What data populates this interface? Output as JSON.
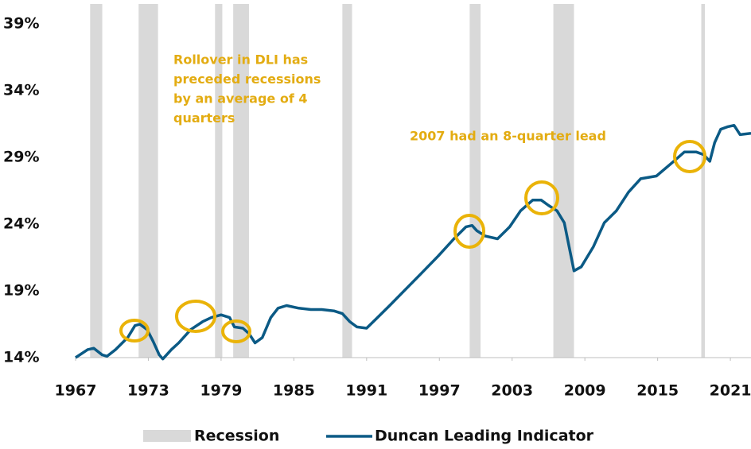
{
  "chart_data": {
    "type": "line",
    "xlim": [
      1967,
      2022.7
    ],
    "xticks": [
      1967,
      1973,
      1979,
      1985,
      1991,
      1997,
      2003,
      2009,
      2015,
      2021
    ],
    "ylim": [
      14,
      39
    ],
    "yticks": [
      {
        "value": 14,
        "label": "14%"
      },
      {
        "value": 19,
        "label": "19%"
      },
      {
        "value": 24,
        "label": "24%"
      },
      {
        "value": 29,
        "label": "29%"
      },
      {
        "value": 34,
        "label": "34%"
      },
      {
        "value": 39,
        "label": "39%"
      }
    ],
    "recessions": {
      "name": "Recession",
      "color": "#d9d9d9",
      "periods": [
        [
          1968.2,
          1969.2
        ],
        [
          1972.2,
          1973.8
        ],
        [
          1978.5,
          1979.1
        ],
        [
          1980.0,
          1981.3
        ],
        [
          1989.0,
          1989.8
        ],
        [
          1999.5,
          2000.4
        ],
        [
          2006.4,
          2008.1
        ],
        [
          2018.6,
          2018.9
        ]
      ]
    },
    "series": [
      {
        "name": "Duncan Leading Indicator",
        "color": "#0b5a85",
        "x": [
          1967.0,
          1968.0,
          1968.5,
          1969.2,
          1969.6,
          1970.3,
          1971.3,
          1971.9,
          1972.3,
          1972.9,
          1973.4,
          1973.9,
          1974.2,
          1974.9,
          1975.5,
          1976.5,
          1977.5,
          1978.2,
          1979.0,
          1979.7,
          1980.1,
          1980.8,
          1981.3,
          1981.8,
          1982.4,
          1983.1,
          1983.7,
          1984.4,
          1985.4,
          1986.4,
          1987.3,
          1988.3,
          1989.0,
          1989.6,
          1990.2,
          1991.0,
          1991.9,
          1992.9,
          1994.2,
          1995.5,
          1996.9,
          1998.2,
          1999.2,
          1999.7,
          2000.1,
          2000.8,
          2001.8,
          2002.8,
          2003.7,
          2004.7,
          2005.4,
          2006.0,
          2006.7,
          2007.3,
          2007.7,
          2008.1,
          2008.7,
          2009.7,
          2010.6,
          2011.6,
          2012.6,
          2013.6,
          2014.9,
          2016.2,
          2017.2,
          2018.2,
          2018.8,
          2019.3,
          2019.7,
          2020.2,
          2020.8,
          2021.3,
          2021.8,
          2022.7
        ],
        "values": [
          14.0,
          14.6,
          14.7,
          14.2,
          14.1,
          14.6,
          15.5,
          16.4,
          16.5,
          16.1,
          15.2,
          14.2,
          13.9,
          14.6,
          15.1,
          16.1,
          16.7,
          17.0,
          17.2,
          17.0,
          16.3,
          16.2,
          15.8,
          15.1,
          15.5,
          17.0,
          17.7,
          17.9,
          17.7,
          17.6,
          17.6,
          17.5,
          17.3,
          16.7,
          16.3,
          16.2,
          17.0,
          17.9,
          19.1,
          20.3,
          21.6,
          22.9,
          23.8,
          23.9,
          23.5,
          23.1,
          22.9,
          23.8,
          25.0,
          25.8,
          25.8,
          25.4,
          25.0,
          24.1,
          22.3,
          20.5,
          20.8,
          22.3,
          24.1,
          25.0,
          26.4,
          27.4,
          27.6,
          28.6,
          29.4,
          29.4,
          29.2,
          28.7,
          30.1,
          31.1,
          31.3,
          31.4,
          30.7,
          30.8
        ]
      }
    ],
    "annotations": [
      [
        "Rollover in DLI has",
        "preceded recessions",
        "by an average of 4",
        "quarters"
      ],
      [
        "2007 had an 8-quarter lead"
      ]
    ]
  }
}
